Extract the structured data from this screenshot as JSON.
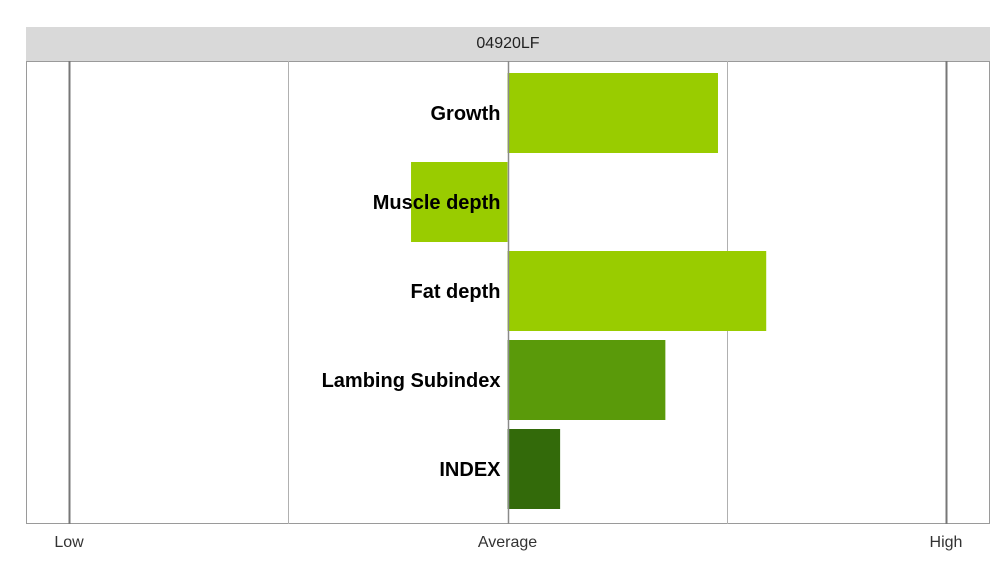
{
  "chart_data": {
    "type": "bar",
    "orientation": "horizontal",
    "title": "04920LF",
    "categories": [
      "Growth",
      "Muscle depth",
      "Fat depth",
      "Lambing Subindex",
      "INDEX"
    ],
    "values": [
      0.48,
      -0.22,
      0.59,
      0.36,
      0.12
    ],
    "colors": [
      "#99cc00",
      "#99cc00",
      "#99cc00",
      "#5a9a0a",
      "#336a0a"
    ],
    "xlim": [
      -1,
      1
    ],
    "ticks": [
      {
        "value": -1,
        "label": "Low"
      },
      {
        "value": 0,
        "label": "Average"
      },
      {
        "value": 1,
        "label": "High"
      }
    ],
    "gridlines": [
      -1,
      -0.5,
      0,
      0.5,
      1
    ],
    "grid": true
  }
}
